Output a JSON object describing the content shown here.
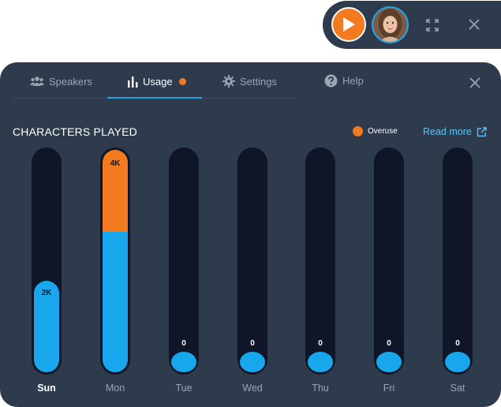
{
  "player": {
    "play_icon": "play-icon",
    "avatar_icon": "avatar",
    "expand_icon": "expand-icon",
    "close_icon": "close-icon"
  },
  "tabs": [
    {
      "label": "Speakers",
      "icon": "users-icon",
      "active": false
    },
    {
      "label": "Usage",
      "icon": "bar-chart-icon",
      "active": true,
      "indicator": "orange-dot"
    },
    {
      "label": "Settings",
      "icon": "gear-icon",
      "active": false
    },
    {
      "label": "Help",
      "icon": "help-icon",
      "active": false
    }
  ],
  "section": {
    "title": "CHARACTERS PLAYED",
    "legend_label": "Overuse",
    "read_more": "Read more"
  },
  "colors": {
    "accent": "#18a7ec",
    "overuse": "#f47a1f",
    "panel": "#2e3b4c",
    "track": "#0f1627"
  },
  "chart_data": {
    "type": "bar",
    "categories": [
      "Sun",
      "Mon",
      "Tue",
      "Wed",
      "Thu",
      "Fri",
      "Sat"
    ],
    "highlighted_category": "Sun",
    "value_labels": [
      "2K",
      "4K",
      "0",
      "0",
      "0",
      "0",
      "0"
    ],
    "fill_fraction": [
      0.41,
      0.63,
      0,
      0,
      0,
      0,
      0
    ],
    "overuse_fraction": [
      0,
      0.37,
      0,
      0,
      0,
      0,
      0
    ],
    "legend": [
      {
        "name": "Overuse",
        "color": "#f47a1f"
      }
    ]
  }
}
